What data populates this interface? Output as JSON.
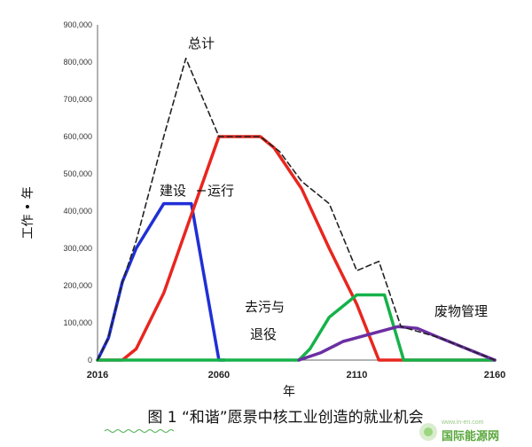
{
  "chart_data": {
    "type": "line",
    "title": "图 1 “和谐”愿景中核工业创造的就业机会",
    "xlabel": "年",
    "ylabel": "工作 • 年",
    "xlim": [
      2016,
      2160
    ],
    "ylim": [
      0,
      900000
    ],
    "x_ticks": [
      "2016",
      "2060",
      "2110",
      "2160"
    ],
    "y_ticks": [
      "0",
      "100,000",
      "200,000",
      "300,000",
      "400,000",
      "500,000",
      "600,000",
      "700,000",
      "800,000",
      "900,000"
    ],
    "grid": false,
    "legend": "none",
    "series": [
      {
        "name": "总计",
        "color": "#222222",
        "dashed": true,
        "x": [
          2016,
          2020,
          2025,
          2030,
          2040,
          2048,
          2060,
          2075,
          2082,
          2090,
          2100,
          2110,
          2118,
          2126,
          2140,
          2150,
          2160
        ],
        "y": [
          0,
          60000,
          210000,
          320000,
          600000,
          810000,
          600000,
          600000,
          560000,
          480000,
          420000,
          240000,
          265000,
          90000,
          60000,
          30000,
          0
        ]
      },
      {
        "name": "建设",
        "color": "#1f2fd6",
        "dashed": false,
        "x": [
          2016,
          2020,
          2025,
          2030,
          2040,
          2050,
          2060,
          2062
        ],
        "y": [
          0,
          60000,
          210000,
          300000,
          420000,
          420000,
          0,
          0
        ]
      },
      {
        "name": "运行",
        "color": "#e8261f",
        "dashed": false,
        "x": [
          2016,
          2025,
          2030,
          2040,
          2060,
          2075,
          2080,
          2090,
          2100,
          2110,
          2118,
          2160
        ],
        "y": [
          0,
          0,
          30000,
          180000,
          600000,
          600000,
          570000,
          460000,
          300000,
          150000,
          0,
          0
        ]
      },
      {
        "name": "去污与退役",
        "color": "#16b24a",
        "dashed": false,
        "x": [
          2016,
          2089,
          2093,
          2100,
          2110,
          2120,
          2127,
          2135,
          2160
        ],
        "y": [
          0,
          0,
          30000,
          115000,
          175000,
          175000,
          0,
          0,
          0
        ]
      },
      {
        "name": "废物管理",
        "color": "#6b2fa3",
        "dashed": false,
        "x": [
          2089,
          2097,
          2105,
          2115,
          2125,
          2132,
          2140,
          2150,
          2160
        ],
        "y": [
          0,
          20000,
          50000,
          70000,
          90000,
          85000,
          60000,
          30000,
          0
        ]
      }
    ],
    "annotations": {
      "total": "总计",
      "construction": "建设",
      "operation": "运行",
      "decon_line1": "去污与",
      "decon_line2": "退役",
      "waste": "废物管理"
    }
  },
  "watermark": {
    "text": "国际能源网",
    "sub": "www.in-en.com"
  }
}
